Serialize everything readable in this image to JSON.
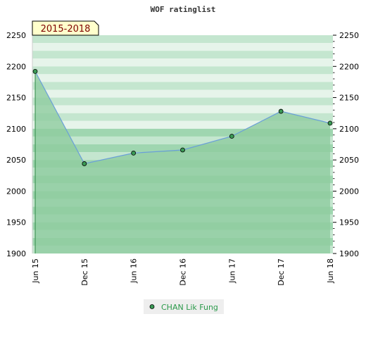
{
  "chart_data": {
    "type": "area",
    "title": "WOF ratinglist",
    "period_label": "2015-2018",
    "categories": [
      "Jun 15",
      "Dec 15",
      "Jun 16",
      "Dec 16",
      "Jun 17",
      "Dec 17",
      "Jun 18"
    ],
    "series": [
      {
        "name": "CHAN Lik Fung",
        "values": [
          2192,
          2044,
          2061,
          2066,
          2088,
          2128,
          2109
        ]
      }
    ],
    "ylim": [
      1900,
      2250
    ],
    "yticks": [
      1900,
      1950,
      2000,
      2050,
      2100,
      2150,
      2200,
      2250
    ],
    "y_axis_both_sides": true,
    "legend_position": "bottom-center",
    "colors": {
      "line": "#6a9fd8",
      "fill": "#8fcc9f",
      "marker": "#3a9a55",
      "band_light": "#e6f4ea",
      "band_mid": "#c4e6cf",
      "band_dark": "#9fd6b0",
      "period_bg": "#ffffcc",
      "period_text": "#800000",
      "legend_text": "#2a9a4a"
    }
  }
}
